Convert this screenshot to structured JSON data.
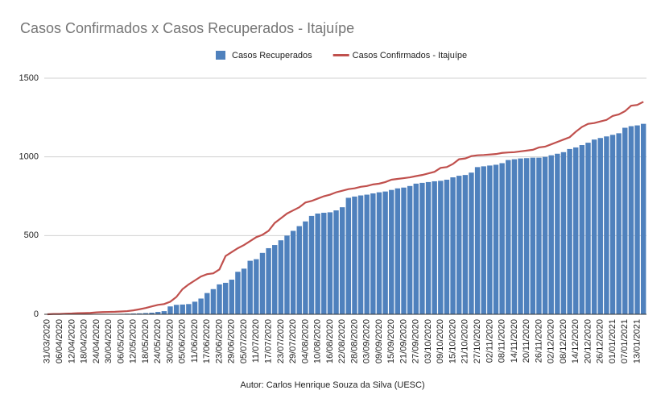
{
  "chart_data": {
    "type": "bar_line",
    "title": "Casos Confirmados x Casos Recuperados - Itajuípe",
    "footer": "Autor: Carlos Henrique Souza da Silva (UESC)",
    "categories": [
      "31/03/2020",
      null,
      "06/04/2020",
      null,
      "12/04/2020",
      null,
      "18/04/2020",
      null,
      "24/04/2020",
      null,
      "30/04/2020",
      null,
      "06/05/2020",
      null,
      "12/05/2020",
      null,
      "18/05/2020",
      null,
      "24/05/2020",
      null,
      "30/05/2020",
      null,
      "05/06/2020",
      null,
      "11/06/2020",
      null,
      "17/06/2020",
      null,
      "23/06/2020",
      null,
      "29/06/2020",
      null,
      "05/07/2020",
      null,
      "11/07/2020",
      null,
      "17/07/2020",
      null,
      "23/07/2020",
      null,
      "29/07/2020",
      null,
      "04/08/2020",
      null,
      "10/08/2020",
      null,
      "16/08/2020",
      null,
      "22/08/2020",
      null,
      "28/08/2020",
      null,
      "03/09/2020",
      null,
      "09/09/2020",
      null,
      "15/09/2020",
      null,
      "21/09/2020",
      null,
      "27/09/2020",
      null,
      "03/10/2020",
      null,
      "09/10/2020",
      null,
      "15/10/2020",
      null,
      "21/10/2020",
      null,
      "27/10/2020",
      null,
      "02/11/2020",
      null,
      "08/11/2020",
      null,
      "14/11/2020",
      null,
      "20/11/2020",
      null,
      "26/11/2020",
      null,
      "02/12/2020",
      null,
      "08/12/2020",
      null,
      "14/12/2020",
      null,
      "20/12/2020",
      null,
      "26/12/2020",
      null,
      "01/01/2021",
      null,
      "07/01/2021",
      null,
      "13/01/2021",
      null
    ],
    "series": [
      {
        "name": "Casos Recuperados",
        "kind": "bar",
        "color": "#4f81bd",
        "values": [
          0,
          0,
          0,
          0,
          0,
          0,
          0,
          0,
          1,
          1,
          2,
          2,
          3,
          4,
          5,
          6,
          8,
          10,
          15,
          20,
          50,
          60,
          62,
          65,
          80,
          100,
          135,
          160,
          190,
          200,
          220,
          270,
          290,
          340,
          350,
          390,
          420,
          440,
          470,
          500,
          530,
          560,
          590,
          625,
          640,
          645,
          648,
          660,
          680,
          740,
          748,
          755,
          760,
          768,
          775,
          780,
          790,
          800,
          805,
          815,
          830,
          835,
          840,
          845,
          848,
          855,
          870,
          880,
          885,
          900,
          935,
          940,
          945,
          950,
          960,
          980,
          985,
          990,
          992,
          995,
          995,
          1000,
          1010,
          1020,
          1030,
          1050,
          1060,
          1075,
          1090,
          1110,
          1120,
          1130,
          1140,
          1150,
          1185,
          1195,
          1200,
          1210
        ]
      },
      {
        "name": "Casos Confirmados - Itajuípe",
        "kind": "line",
        "color": "#c0504d",
        "values": [
          0,
          2,
          2,
          4,
          5,
          7,
          8,
          9,
          12,
          14,
          15,
          16,
          18,
          20,
          25,
          32,
          40,
          50,
          60,
          65,
          80,
          110,
          160,
          190,
          215,
          240,
          255,
          260,
          285,
          370,
          395,
          420,
          440,
          465,
          490,
          505,
          530,
          580,
          610,
          640,
          660,
          680,
          710,
          720,
          735,
          750,
          760,
          775,
          785,
          795,
          800,
          810,
          815,
          825,
          830,
          840,
          855,
          860,
          865,
          870,
          878,
          885,
          895,
          905,
          930,
          935,
          955,
          985,
          990,
          1005,
          1010,
          1012,
          1015,
          1018,
          1025,
          1028,
          1030,
          1035,
          1040,
          1045,
          1060,
          1065,
          1080,
          1095,
          1110,
          1125,
          1160,
          1190,
          1210,
          1215,
          1225,
          1235,
          1260,
          1270,
          1290,
          1325,
          1330,
          1350
        ]
      }
    ],
    "ylim": [
      0,
      1500
    ],
    "yticks": [
      0,
      500,
      1000,
      1500
    ],
    "grid": true
  }
}
